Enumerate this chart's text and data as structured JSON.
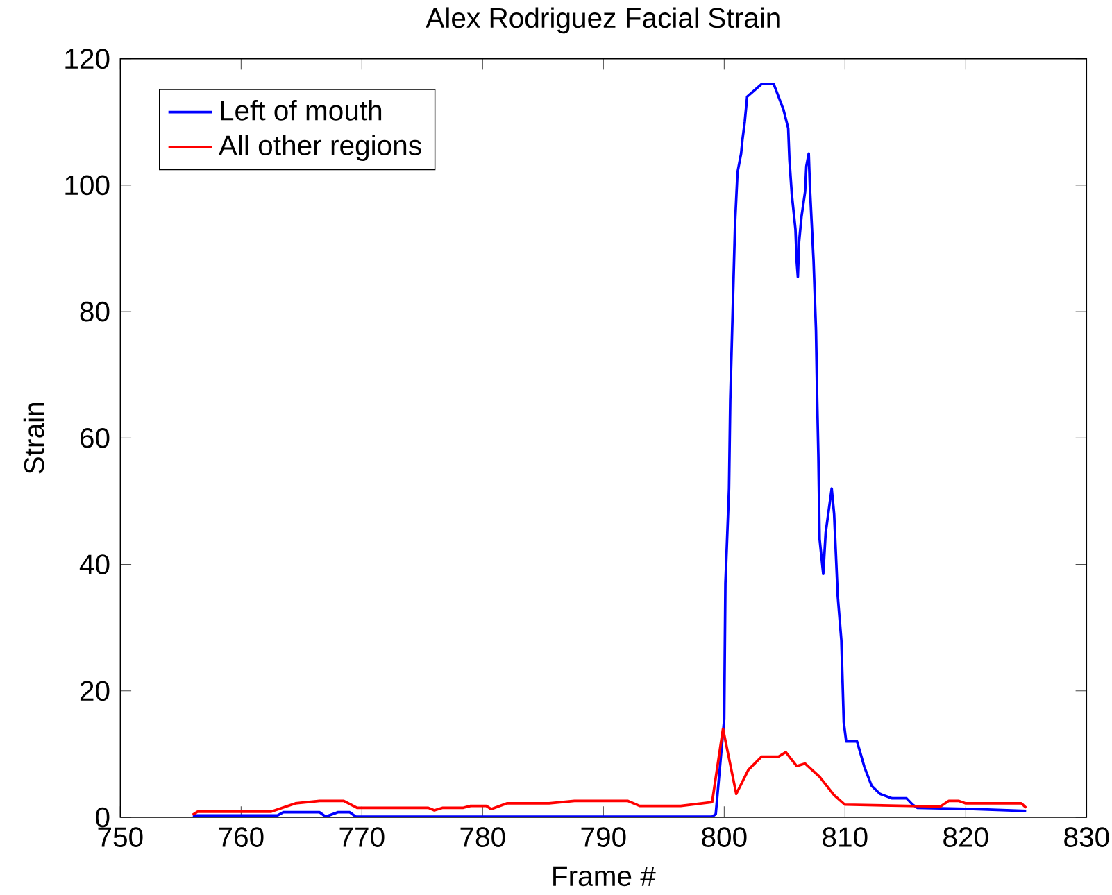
{
  "chart_data": {
    "type": "line",
    "title": "Alex Rodriguez Facial Strain",
    "xlabel": "Frame #",
    "ylabel": "Strain",
    "xlim": [
      750,
      830
    ],
    "xticks": [
      750,
      760,
      770,
      780,
      790,
      800,
      810,
      820,
      830
    ],
    "ylim": [
      0,
      120
    ],
    "yticks": [
      0,
      20,
      40,
      60,
      80,
      100,
      120
    ],
    "grid": false,
    "legend": "top left",
    "series": [
      {
        "name": "Left of mouth",
        "color": "#0000ff",
        "x": [
          756,
          763,
          763.5,
          766.5,
          767,
          768,
          769,
          769.5,
          799,
          799.3,
          800,
          800.1,
          800.4,
          800.5,
          800.7,
          800.9,
          801.1,
          801.4,
          801.5,
          801.7,
          801.9,
          803.1,
          804.1,
          804.9,
          805.3,
          805.4,
          805.6,
          805.9,
          806,
          806.1,
          806.2,
          806.4,
          806.7,
          806.8,
          807,
          807.1,
          807.4,
          807.6,
          807.7,
          807.8,
          807.9,
          808.2,
          808.4,
          808.9,
          809.1,
          809.4,
          809.7,
          809.9,
          810.1,
          811,
          811.6,
          812.2,
          812.9,
          813.9,
          815.1,
          815.6,
          816,
          820.6,
          825
        ],
        "values": [
          0.3,
          0.3,
          0.8,
          0.8,
          0.1,
          0.8,
          0.8,
          0.1,
          0.1,
          0.5,
          15.5,
          37,
          52,
          66,
          80,
          94,
          102,
          105,
          107,
          110,
          114,
          116,
          116,
          112,
          109,
          104,
          98.5,
          93,
          88,
          85.5,
          91,
          95,
          99,
          103,
          105,
          99.5,
          88,
          77,
          66,
          57,
          44,
          38.5,
          45,
          52,
          48,
          35,
          28,
          15,
          12,
          12,
          8,
          5,
          3.7,
          3,
          3,
          2,
          1.5,
          1.3,
          1
        ]
      },
      {
        "name": "All other regions",
        "color": "#ff0000",
        "x": [
          756,
          756.4,
          762.5,
          764.5,
          766.5,
          768.5,
          769.6,
          775.5,
          776,
          776.7,
          778.4,
          779,
          780.3,
          780.7,
          782,
          785.5,
          787.6,
          792,
          793,
          796.4,
          799,
          799.9,
          801,
          802,
          803.1,
          804.5,
          805.1,
          806,
          806.7,
          807.9,
          809.1,
          810,
          817.9,
          818.6,
          819.4,
          820,
          824.6,
          825
        ],
        "values": [
          0.4,
          0.9,
          0.9,
          2.2,
          2.6,
          2.6,
          1.5,
          1.5,
          1.1,
          1.5,
          1.5,
          1.8,
          1.8,
          1.3,
          2.2,
          2.2,
          2.6,
          2.6,
          1.8,
          1.8,
          2.4,
          14,
          3.7,
          7.5,
          9.6,
          9.6,
          10.3,
          8.1,
          8.5,
          6.4,
          3.5,
          2,
          1.7,
          2.6,
          2.6,
          2.2,
          2.2,
          1.5
        ]
      }
    ]
  }
}
